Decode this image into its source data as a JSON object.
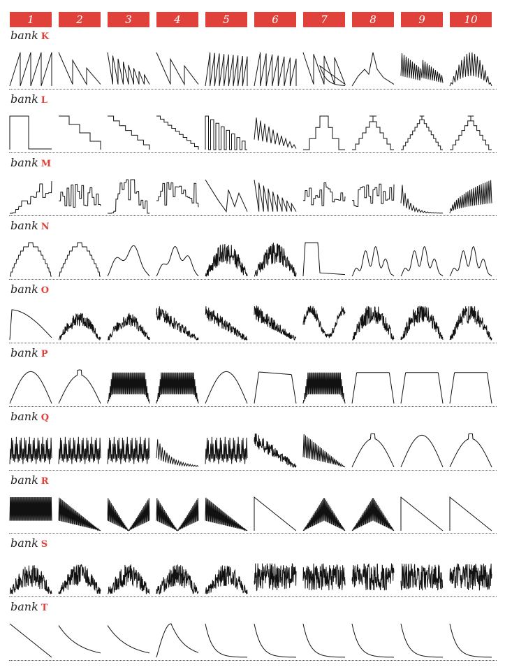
{
  "columns": [
    "1",
    "2",
    "3",
    "4",
    "5",
    "6",
    "7",
    "8",
    "9",
    "10"
  ],
  "bank_word": "bank",
  "banks": [
    {
      "letter": "K",
      "shapes": [
        "saw-multi",
        "saw-decay",
        "saw-dense-decay",
        "saw-decay-2",
        "saw-rise-dense",
        "saw-rise-dense-2",
        "exp-decay-spikes",
        "spiky-peak",
        "tri-dense",
        "tri-stair"
      ]
    },
    {
      "letter": "L",
      "shapes": [
        "pulse",
        "stair-down-3",
        "stair-down-6",
        "stair-down-10",
        "comb-decay",
        "comb-decay-2",
        "step-pyramid",
        "stair-tri",
        "stair-tri-fine",
        "stair-tri-fine-2"
      ]
    },
    {
      "letter": "M",
      "shapes": [
        "stair-up-random",
        "random-steps",
        "random-steps-hump",
        "dense-random",
        "saw-pair",
        "saw-cluster",
        "random-bars",
        "random-noise",
        "decay-dense",
        "dense-rise"
      ]
    },
    {
      "letter": "N",
      "shapes": [
        "round-stair",
        "stair-tri-round",
        "wobble-hump",
        "hump-stair",
        "dense-tri-notch",
        "dense-block",
        "block-rect",
        "bumpy-peaks",
        "bumpy-peaks-2",
        "bumpy-peaks-3"
      ]
    },
    {
      "letter": "O",
      "shapes": [
        "round-decay",
        "noisy-hump",
        "noisy-hump-2",
        "saw-noisy",
        "noisy-decay",
        "noisy-decay-2",
        "noisy-bell",
        "noisy-rise",
        "dense-mid",
        "noisy-mid"
      ]
    },
    {
      "letter": "P",
      "shapes": [
        "arch",
        "arch-glitch",
        "plateau-dense",
        "plateau-dense-2",
        "arch-smooth",
        "plateau-slant",
        "plateau-dense-3",
        "plateau",
        "plateau-2",
        "plateau-3"
      ]
    },
    {
      "letter": "Q",
      "shapes": [
        "spikes",
        "spikes-dense",
        "spikes-comb",
        "spike-decay",
        "spike-comb-2",
        "noisy-decay-3",
        "saw-dense-down",
        "hump-notch",
        "arch-rough",
        "arch-notch"
      ]
    },
    {
      "letter": "R",
      "shapes": [
        "full-block",
        "triangle-down",
        "bowtie",
        "bowtie-noisy",
        "triangle-down-noisy",
        "saw-single",
        "tri-dense-full",
        "tri-dense-half",
        "ramp-down",
        "ramp-down-2"
      ]
    },
    {
      "letter": "S",
      "shapes": [
        "noisy-peak",
        "noisy-low",
        "noisy-mid-2",
        "noisy-mid-3",
        "noisy-lump",
        "noisy-even",
        "noisy-even-2",
        "noisy-even-3",
        "noisy-even-4",
        "noisy-even-5"
      ]
    },
    {
      "letter": "T",
      "shapes": [
        "lin-down",
        "exp-down-soft",
        "exp-down-soft-2",
        "arch-low",
        "exp-fast",
        "exp-fast-2",
        "exp-fast-3",
        "exp-fast-4",
        "exp-fast-5",
        "exp-fast-6"
      ]
    }
  ],
  "colors": {
    "accent": "#e0413a",
    "ink": "#111111",
    "rule": "#555555"
  }
}
